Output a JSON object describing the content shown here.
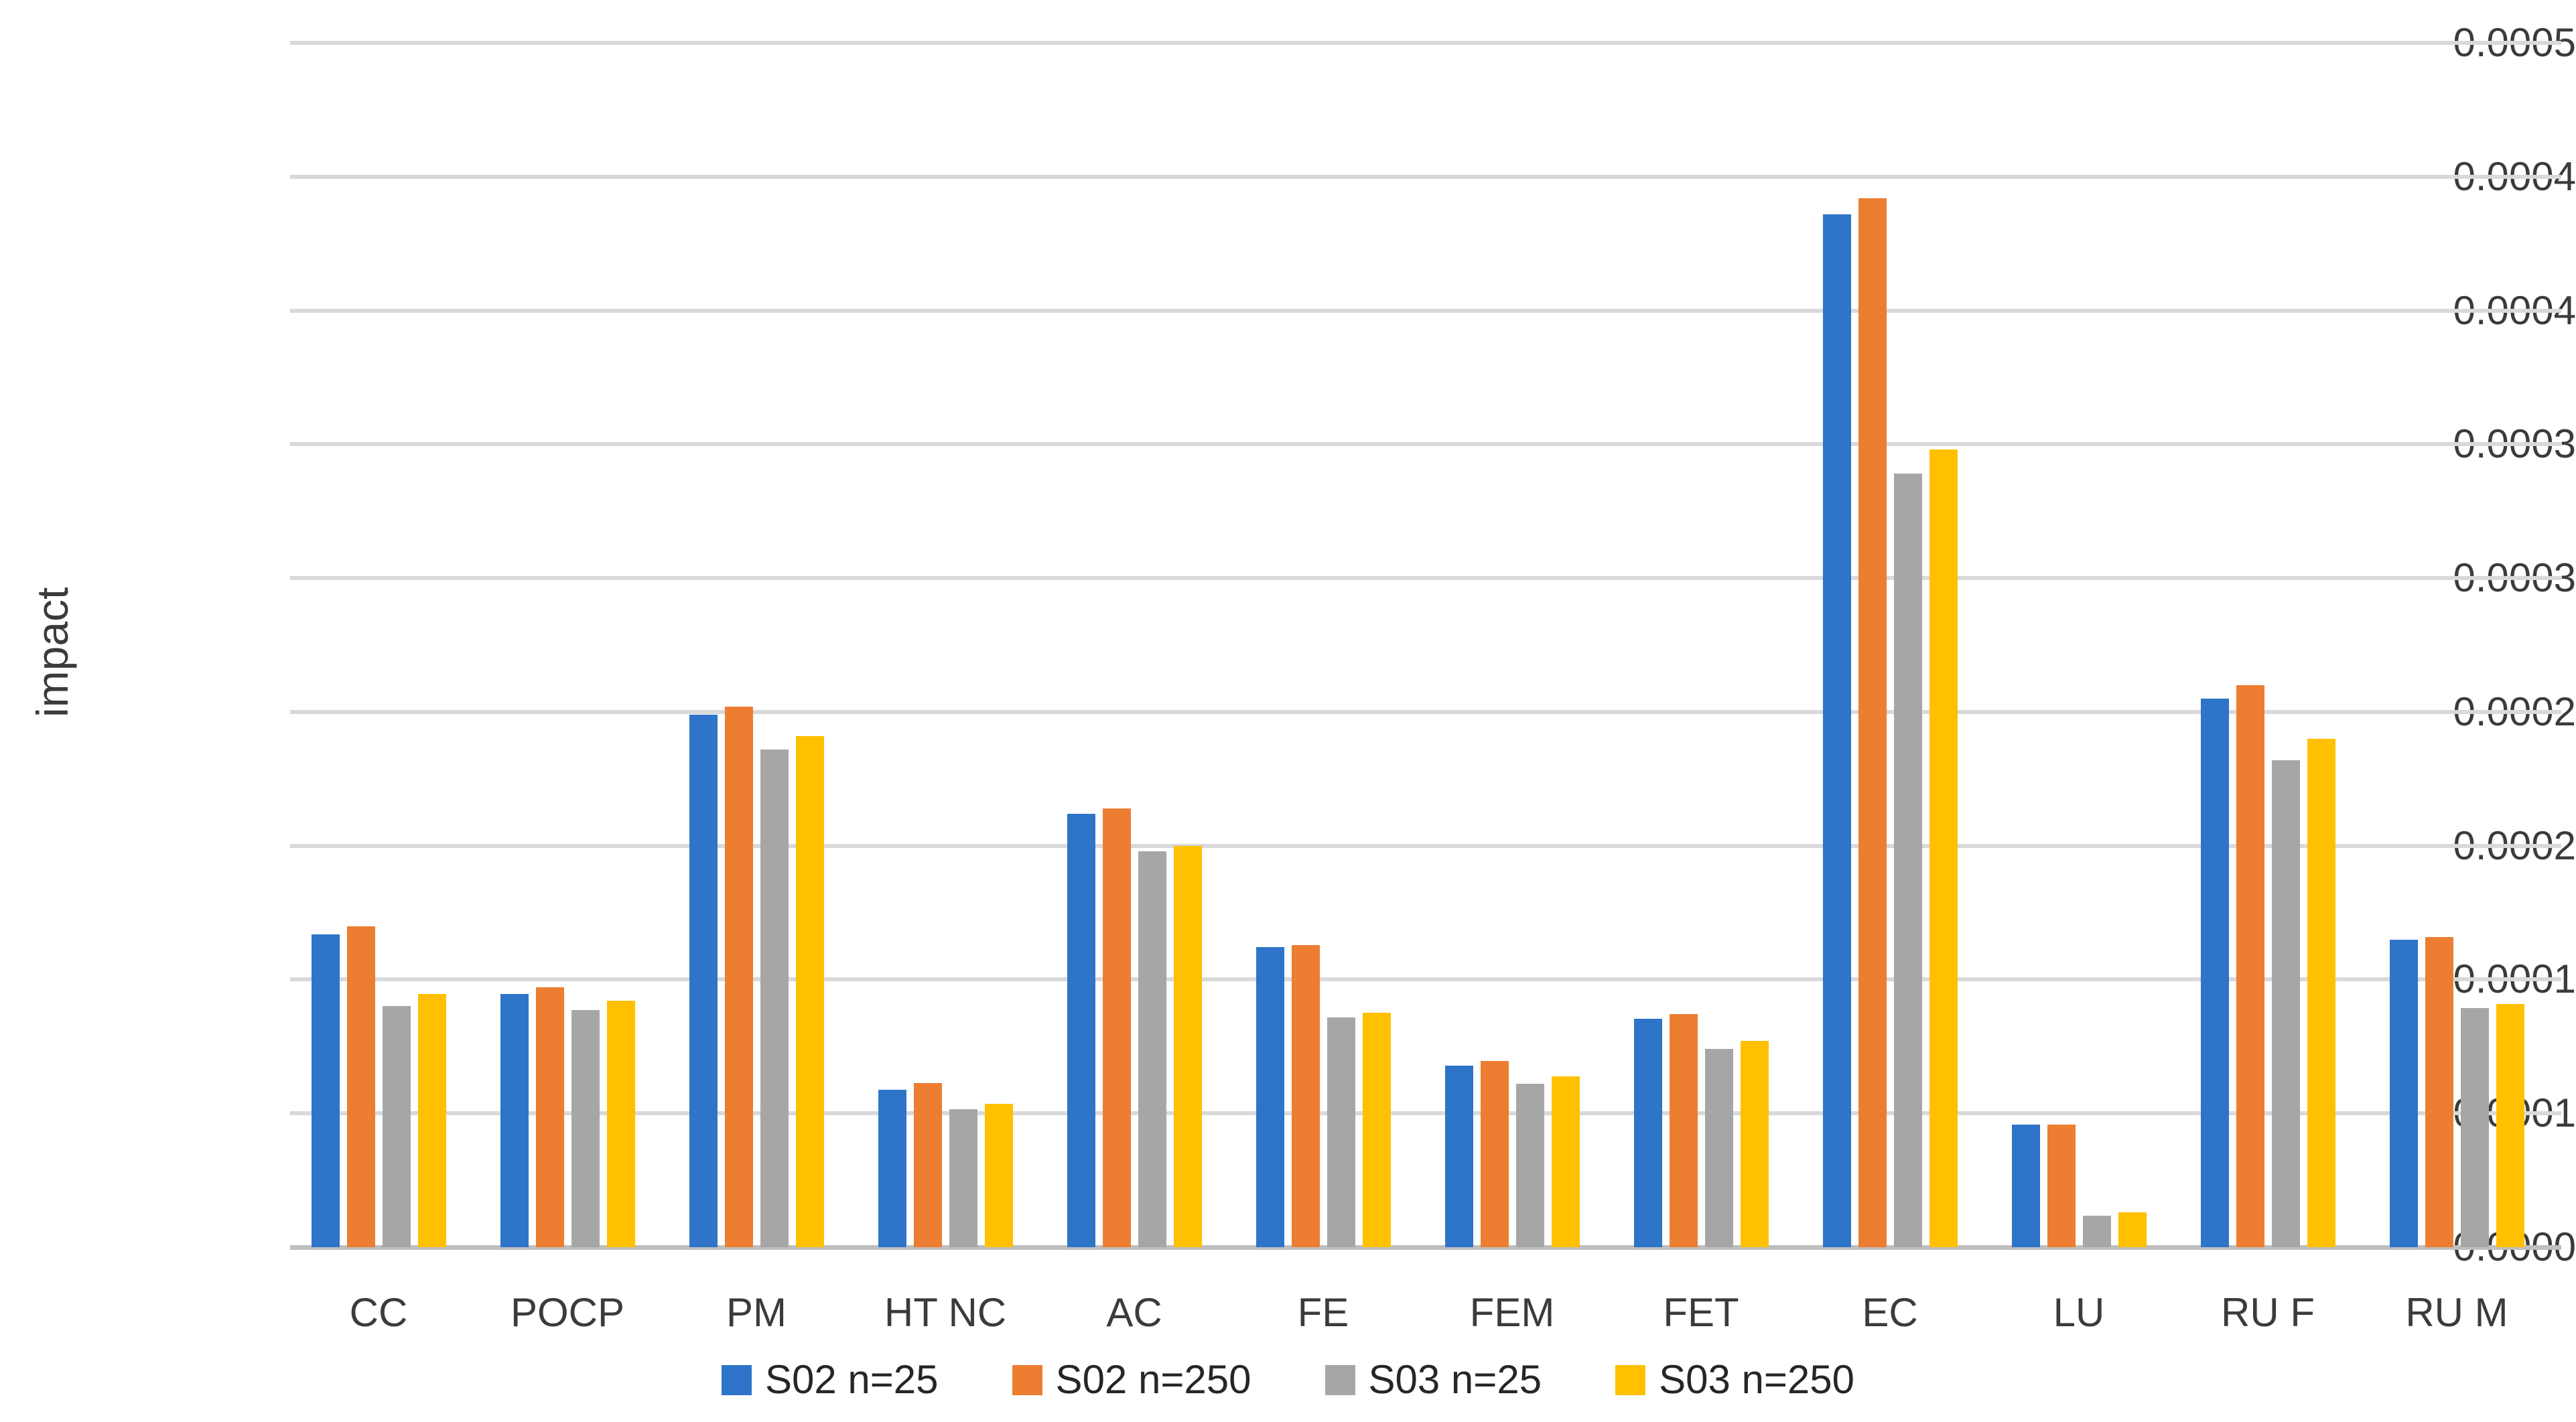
{
  "chart_data": {
    "type": "bar",
    "title": "",
    "xlabel": "",
    "ylabel": "impact",
    "categories": [
      "CC",
      "POCP",
      "PM",
      "HT NC",
      "AC",
      "FE",
      "FEM",
      "FET",
      "EC",
      "LU",
      "RU F",
      "RU M"
    ],
    "series": [
      {
        "name": "S02 n=25",
        "color": "#2E74C8",
        "values": [
          0.000117,
          9.45e-05,
          0.000199,
          5.87e-05,
          0.000162,
          0.000112,
          6.79e-05,
          8.54e-05,
          0.000386,
          4.59e-05,
          0.000205,
          0.000115
        ]
      },
      {
        "name": "S02 n=250",
        "color": "#ED7D31",
        "values": [
          0.00012,
          9.72e-05,
          0.000202,
          6.14e-05,
          0.000164,
          0.000113,
          6.96e-05,
          8.72e-05,
          0.000392,
          4.59e-05,
          0.00021,
          0.000116
        ]
      },
      {
        "name": "S03 n=25",
        "color": "#A6A6A6",
        "values": [
          9e-05,
          8.85e-05,
          0.000186,
          5.16e-05,
          0.000148,
          8.59e-05,
          6.11e-05,
          7.4e-05,
          0.000289,
          1.18e-05,
          0.000182,
          8.93e-05
        ]
      },
      {
        "name": "S03 n=250",
        "color": "#FFC000",
        "values": [
          9.47e-05,
          9.2e-05,
          0.000191,
          5.36e-05,
          0.00015,
          8.77e-05,
          6.39e-05,
          7.71e-05,
          0.000298,
          1.29e-05,
          0.00019,
          9.08e-05
        ]
      }
    ],
    "ylim": [
      0,
      0.00045
    ],
    "y_tick_step": 5e-05,
    "y_tick_labels_top_to_bottom": [
      "0.0005",
      "0.0004",
      "0.0004",
      "0.0003",
      "0.0003",
      "0.0002",
      "0.0002",
      "0.0001",
      "0.0001",
      "0.0000"
    ],
    "grid": true,
    "legend_position": "bottom",
    "colors": {
      "gridline": "#d9d9d9",
      "axis_line": "#bfbfbf",
      "tick_text": "#3b3b3b",
      "background": "#ffffff"
    }
  }
}
